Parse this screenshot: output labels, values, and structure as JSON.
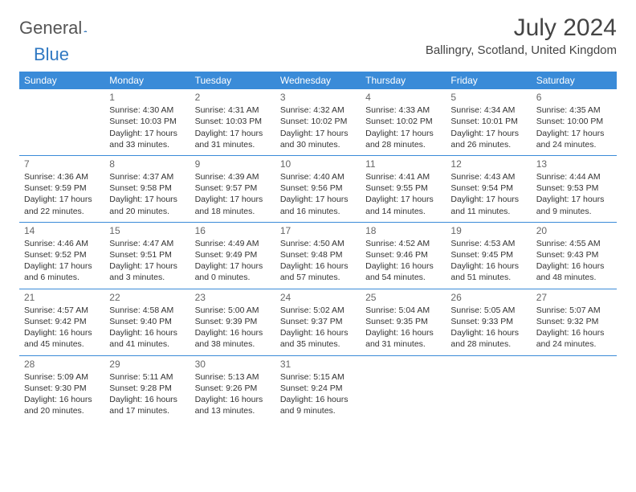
{
  "brand": {
    "part1": "General",
    "part2": "Blue"
  },
  "title": "July 2024",
  "location": "Ballingry, Scotland, United Kingdom",
  "colors": {
    "header_bg": "#3a8bd8",
    "header_fg": "#ffffff",
    "rule": "#3a8bd8",
    "text": "#333333",
    "brand_gray": "#555555",
    "brand_blue": "#2f78c2"
  },
  "weekdays": [
    "Sunday",
    "Monday",
    "Tuesday",
    "Wednesday",
    "Thursday",
    "Friday",
    "Saturday"
  ],
  "weeks": [
    [
      null,
      {
        "n": "1",
        "sr": "4:30 AM",
        "ss": "10:03 PM",
        "dl": "17 hours and 33 minutes."
      },
      {
        "n": "2",
        "sr": "4:31 AM",
        "ss": "10:03 PM",
        "dl": "17 hours and 31 minutes."
      },
      {
        "n": "3",
        "sr": "4:32 AM",
        "ss": "10:02 PM",
        "dl": "17 hours and 30 minutes."
      },
      {
        "n": "4",
        "sr": "4:33 AM",
        "ss": "10:02 PM",
        "dl": "17 hours and 28 minutes."
      },
      {
        "n": "5",
        "sr": "4:34 AM",
        "ss": "10:01 PM",
        "dl": "17 hours and 26 minutes."
      },
      {
        "n": "6",
        "sr": "4:35 AM",
        "ss": "10:00 PM",
        "dl": "17 hours and 24 minutes."
      }
    ],
    [
      {
        "n": "7",
        "sr": "4:36 AM",
        "ss": "9:59 PM",
        "dl": "17 hours and 22 minutes."
      },
      {
        "n": "8",
        "sr": "4:37 AM",
        "ss": "9:58 PM",
        "dl": "17 hours and 20 minutes."
      },
      {
        "n": "9",
        "sr": "4:39 AM",
        "ss": "9:57 PM",
        "dl": "17 hours and 18 minutes."
      },
      {
        "n": "10",
        "sr": "4:40 AM",
        "ss": "9:56 PM",
        "dl": "17 hours and 16 minutes."
      },
      {
        "n": "11",
        "sr": "4:41 AM",
        "ss": "9:55 PM",
        "dl": "17 hours and 14 minutes."
      },
      {
        "n": "12",
        "sr": "4:43 AM",
        "ss": "9:54 PM",
        "dl": "17 hours and 11 minutes."
      },
      {
        "n": "13",
        "sr": "4:44 AM",
        "ss": "9:53 PM",
        "dl": "17 hours and 9 minutes."
      }
    ],
    [
      {
        "n": "14",
        "sr": "4:46 AM",
        "ss": "9:52 PM",
        "dl": "17 hours and 6 minutes."
      },
      {
        "n": "15",
        "sr": "4:47 AM",
        "ss": "9:51 PM",
        "dl": "17 hours and 3 minutes."
      },
      {
        "n": "16",
        "sr": "4:49 AM",
        "ss": "9:49 PM",
        "dl": "17 hours and 0 minutes."
      },
      {
        "n": "17",
        "sr": "4:50 AM",
        "ss": "9:48 PM",
        "dl": "16 hours and 57 minutes."
      },
      {
        "n": "18",
        "sr": "4:52 AM",
        "ss": "9:46 PM",
        "dl": "16 hours and 54 minutes."
      },
      {
        "n": "19",
        "sr": "4:53 AM",
        "ss": "9:45 PM",
        "dl": "16 hours and 51 minutes."
      },
      {
        "n": "20",
        "sr": "4:55 AM",
        "ss": "9:43 PM",
        "dl": "16 hours and 48 minutes."
      }
    ],
    [
      {
        "n": "21",
        "sr": "4:57 AM",
        "ss": "9:42 PM",
        "dl": "16 hours and 45 minutes."
      },
      {
        "n": "22",
        "sr": "4:58 AM",
        "ss": "9:40 PM",
        "dl": "16 hours and 41 minutes."
      },
      {
        "n": "23",
        "sr": "5:00 AM",
        "ss": "9:39 PM",
        "dl": "16 hours and 38 minutes."
      },
      {
        "n": "24",
        "sr": "5:02 AM",
        "ss": "9:37 PM",
        "dl": "16 hours and 35 minutes."
      },
      {
        "n": "25",
        "sr": "5:04 AM",
        "ss": "9:35 PM",
        "dl": "16 hours and 31 minutes."
      },
      {
        "n": "26",
        "sr": "5:05 AM",
        "ss": "9:33 PM",
        "dl": "16 hours and 28 minutes."
      },
      {
        "n": "27",
        "sr": "5:07 AM",
        "ss": "9:32 PM",
        "dl": "16 hours and 24 minutes."
      }
    ],
    [
      {
        "n": "28",
        "sr": "5:09 AM",
        "ss": "9:30 PM",
        "dl": "16 hours and 20 minutes."
      },
      {
        "n": "29",
        "sr": "5:11 AM",
        "ss": "9:28 PM",
        "dl": "16 hours and 17 minutes."
      },
      {
        "n": "30",
        "sr": "5:13 AM",
        "ss": "9:26 PM",
        "dl": "16 hours and 13 minutes."
      },
      {
        "n": "31",
        "sr": "5:15 AM",
        "ss": "9:24 PM",
        "dl": "16 hours and 9 minutes."
      },
      null,
      null,
      null
    ]
  ],
  "labels": {
    "sunrise": "Sunrise:",
    "sunset": "Sunset:",
    "daylight": "Daylight:"
  }
}
